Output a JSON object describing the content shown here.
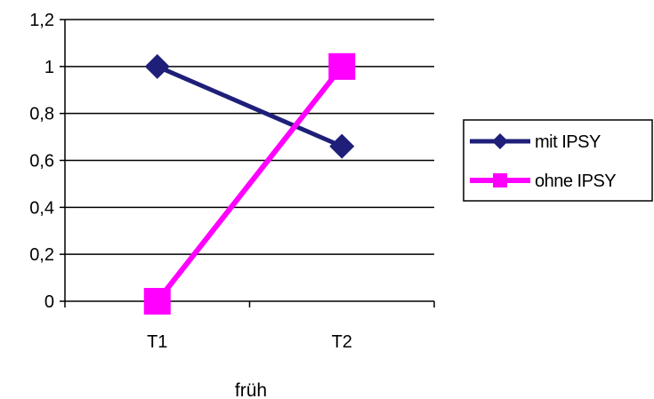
{
  "chart_data": {
    "type": "line",
    "title": "",
    "xlabel": "früh",
    "ylabel": "",
    "categories": [
      "T1",
      "T2"
    ],
    "ylim": [
      0,
      1.2
    ],
    "yticks": [
      0,
      0.2,
      0.4,
      0.6,
      0.8,
      1,
      1.2
    ],
    "ytick_labels": [
      "0",
      "0,2",
      "0,4",
      "0,6",
      "0,8",
      "1",
      "1,2"
    ],
    "grid": true,
    "legend_position": "right",
    "series": [
      {
        "name": "mit IPSY",
        "values": [
          1,
          0.66
        ],
        "color": "#1f1f7a",
        "marker": "diamond"
      },
      {
        "name": "ohne IPSY",
        "values": [
          0,
          1
        ],
        "color": "#ff00ff",
        "marker": "square"
      }
    ]
  }
}
